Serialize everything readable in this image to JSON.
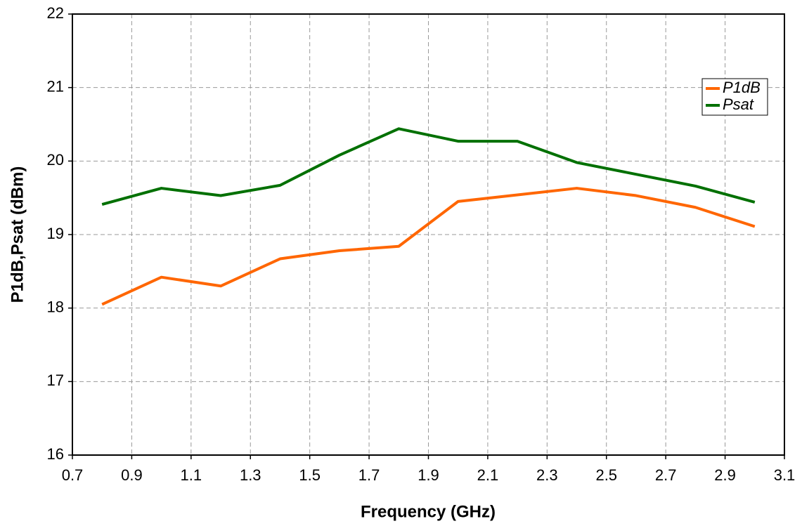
{
  "chart_data": {
    "type": "line",
    "x_label": "Frequency (GHz)",
    "y_label": "P1dB,Psat (dBm)",
    "x": [
      0.8,
      1.0,
      1.2,
      1.4,
      1.6,
      1.8,
      2.0,
      2.2,
      2.4,
      2.6,
      2.8,
      3.0
    ],
    "series": [
      {
        "name": "P1dB",
        "color": "#ff6600",
        "values": [
          18.05,
          18.42,
          18.3,
          18.67,
          18.78,
          18.84,
          19.45,
          19.54,
          19.63,
          19.53,
          19.37,
          19.11
        ]
      },
      {
        "name": "Psat",
        "color": "#007000",
        "values": [
          19.41,
          19.63,
          19.53,
          19.67,
          20.08,
          20.44,
          20.27,
          20.27,
          19.98,
          19.82,
          19.66,
          19.44
        ]
      }
    ],
    "xlim": [
      0.7,
      3.1
    ],
    "xticks": [
      0.7,
      0.9,
      1.1,
      1.3,
      1.5,
      1.7,
      1.9,
      2.1,
      2.3,
      2.5,
      2.7,
      2.9,
      3.1
    ],
    "ylim": [
      16,
      22
    ],
    "yticks": [
      16,
      17,
      18,
      19,
      20,
      21,
      22
    ],
    "grid": true,
    "legend": "upper right"
  }
}
